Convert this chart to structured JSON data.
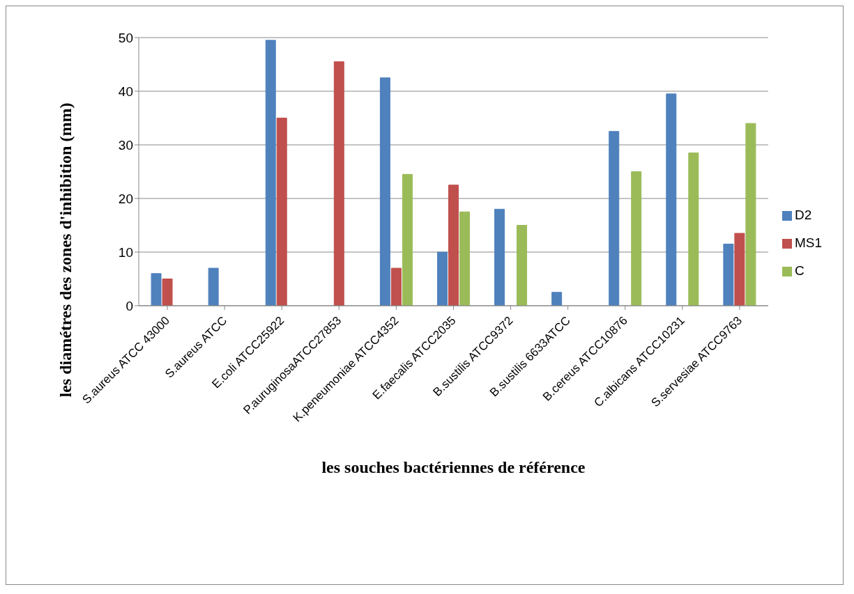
{
  "chart_data": {
    "type": "bar",
    "xlabel": "les souches bactériennes de référence",
    "ylabel": "les diamétres des zones d'inhibition (mm)",
    "categories": [
      "S.aureus ATCC 43000",
      "S.aureus ATCC",
      "E.coli ATCC25922",
      "P.auruginosaATCC27853",
      "K.peneumoniae ATCC4352",
      "E.faecalis ATCC2035",
      "B.sustilis ATCC9372",
      "B.sustilis 6633ATCC",
      "B.cereus ATCC10876",
      "C.albicans ATCC10231",
      "S.servesiae ATCC9763"
    ],
    "series": [
      {
        "name": "D2",
        "color": "#4f81bd",
        "values": [
          6,
          7,
          49.5,
          0,
          42.5,
          10,
          18,
          2.5,
          32.5,
          39.5,
          11.5
        ]
      },
      {
        "name": "MS1",
        "color": "#c0504d",
        "values": [
          5,
          0,
          35,
          45.5,
          7,
          22.5,
          0,
          0,
          0,
          0,
          13.5
        ]
      },
      {
        "name": "C",
        "color": "#9bbb59",
        "values": [
          0,
          0,
          0,
          0,
          24.5,
          17.5,
          15,
          0,
          25,
          28.5,
          34
        ]
      }
    ],
    "ylim": [
      0,
      50
    ],
    "yticks": [
      0,
      10,
      20,
      30,
      40,
      50
    ],
    "grid": "y",
    "legend": "right"
  }
}
